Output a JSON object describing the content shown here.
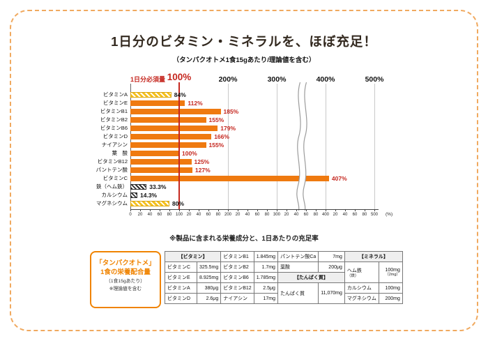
{
  "colors": {
    "orange": "#ef7a10",
    "red": "#c5271f",
    "yellow": "#f5c11e",
    "dark": "#2e2e2e",
    "frame": "#f0a95f"
  },
  "header": {
    "title": "1日分のビタミン・ミネラルを、ほぼ充足！",
    "subtitle": "（タンパクオトメ1食15gあたり/理論値を含む）"
  },
  "chart_note": "※製品に含まれる栄養成分と、1日あたりの充足率",
  "chart_data": {
    "type": "bar",
    "orientation": "horizontal",
    "unit": "%",
    "xlim": [
      0,
      520
    ],
    "reference_line": {
      "value": 100,
      "label": "100%",
      "caption": "1日分必須量",
      "color": "#c5271f"
    },
    "axis_break": {
      "between": [
        300,
        400
      ],
      "position": 350
    },
    "top_axis_labels": [
      {
        "value": 200,
        "label": "200%"
      },
      {
        "value": 300,
        "label": "300%"
      },
      {
        "value": 400,
        "label": "400%"
      },
      {
        "value": 500,
        "label": "500%"
      }
    ],
    "bottom_axis": {
      "tick_step": 20,
      "max": 500,
      "unit_label": "(%)"
    },
    "rows": [
      {
        "label": "ビタミンA",
        "value": 84,
        "display": "84%",
        "style": "yellow-hatch",
        "label_style": "dark"
      },
      {
        "label": "ビタミンE",
        "value": 112,
        "display": "112%",
        "style": "orange",
        "label_style": "red"
      },
      {
        "label": "ビタミンB1",
        "value": 185,
        "display": "185%",
        "style": "orange",
        "label_style": "red"
      },
      {
        "label": "ビタミンB2",
        "value": 155,
        "display": "155%",
        "style": "orange",
        "label_style": "red"
      },
      {
        "label": "ビタミンB6",
        "value": 179,
        "display": "179%",
        "style": "orange",
        "label_style": "red"
      },
      {
        "label": "ビタミンD",
        "value": 166,
        "display": "166%",
        "style": "orange",
        "label_style": "red"
      },
      {
        "label": "ナイアシン",
        "value": 155,
        "display": "155%",
        "style": "orange",
        "label_style": "red"
      },
      {
        "label": "葉　酸",
        "value": 100,
        "display": "100%",
        "style": "orange",
        "label_style": "red"
      },
      {
        "label": "ビタミンB12",
        "value": 125,
        "display": "125%",
        "style": "orange",
        "label_style": "red"
      },
      {
        "label": "パントテン酸",
        "value": 127,
        "display": "127%",
        "style": "orange",
        "label_style": "red"
      },
      {
        "label": "ビタミンC",
        "value": 407,
        "display": "407%",
        "style": "orange",
        "label_style": "red"
      },
      {
        "label": "鉄（ヘム鉄）",
        "value": 33.3,
        "display": "33.3%",
        "style": "dark-hatch",
        "label_style": "dark"
      },
      {
        "label": "カルシウム",
        "value": 14.3,
        "display": "14.3%",
        "style": "dark-hatch",
        "label_style": "dark"
      },
      {
        "label": "マグネシウム",
        "value": 80,
        "display": "80%",
        "style": "yellow-hatch",
        "label_style": "dark"
      }
    ]
  },
  "product_box": {
    "line1": "「タンパクオトメ」",
    "line2": "1食の栄養配合量",
    "line3": "（1食15gあたり）",
    "line4": "※理論値を含む"
  },
  "table": {
    "headers": {
      "vitamin": "【ビタミン】",
      "protein": "【たんぱく質】",
      "mineral": "【ミネラル】"
    },
    "cells": {
      "vitC": {
        "name": "ビタミンC",
        "value": "325.5mg"
      },
      "vitE": {
        "name": "ビタミンE",
        "value": "8.925mg"
      },
      "vitA": {
        "name": "ビタミンA",
        "value": "380μg"
      },
      "vitD": {
        "name": "ビタミンD",
        "value": "2.6μg"
      },
      "b1": {
        "name": "ビタミンB1",
        "value": "1.845mg"
      },
      "b2": {
        "name": "ビタミンB2",
        "value": "1.7mg"
      },
      "b6": {
        "name": "ビタミンB6",
        "value": "1.785mg"
      },
      "b12": {
        "name": "ビタミンB12",
        "value": "2.5μg"
      },
      "niacin": {
        "name": "ナイアシン",
        "value": "17mg"
      },
      "pantothenate": {
        "name": "パントテン酸Ca",
        "value": "7mg"
      },
      "folate": {
        "name": "葉酸",
        "value": "200μg"
      },
      "protein": {
        "name": "たんぱく質",
        "value": "11,070mg"
      },
      "heme_iron": {
        "name": "ヘム鉄",
        "name_sub": "（鉄）",
        "value": "100mg",
        "value_sub": "（2mg）"
      },
      "calcium": {
        "name": "カルシウム",
        "value": "100mg"
      },
      "magnesium": {
        "name": "マグネシウム",
        "value": "200mg"
      }
    }
  }
}
